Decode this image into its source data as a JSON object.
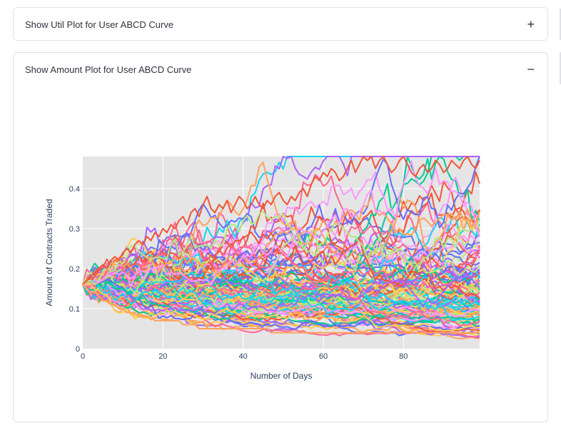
{
  "expanders": [
    {
      "title": "Show Util Plot for User ABCD Curve",
      "toggle": "+",
      "expanded": false
    },
    {
      "title": "Show Amount Plot for User ABCD Curve",
      "toggle": "−",
      "expanded": true
    }
  ],
  "colors": {
    "plot_background": "#e5e5e5",
    "grid": "#ffffff",
    "border": "#e0e2e6",
    "text": "#31333f",
    "series_palette": [
      "#636efa",
      "#EF553B",
      "#00cc96",
      "#ab63fa",
      "#FFA15A",
      "#19d3f3",
      "#FF6692",
      "#B6E880",
      "#FF97FF",
      "#FECB52"
    ]
  },
  "chart_data": {
    "type": "line",
    "title": "",
    "xlabel": "Number of Days",
    "ylabel": "Amount of Contracts Traded",
    "xlim": [
      0,
      99
    ],
    "ylim": [
      0,
      0.48
    ],
    "xticks": [
      0,
      20,
      40,
      60,
      80
    ],
    "yticks": [
      0,
      0.1,
      0.2,
      0.3,
      0.4
    ],
    "grid": true,
    "legend": "none",
    "start_value": 0.16,
    "num_series": 120,
    "series_note": "simulated random-walk paths, all starting near 0.16 at day 0",
    "series": [
      {
        "name": "",
        "values": [
          0.16,
          0.17,
          0.18,
          0.19,
          0.2,
          0.21,
          0.2,
          0.22,
          0.23,
          0.22,
          0.24,
          0.25,
          0.24,
          0.26,
          0.27,
          0.26,
          0.28,
          0.27,
          0.29,
          0.28,
          0.3,
          0.29,
          0.31,
          0.3,
          0.32,
          0.33,
          0.31,
          0.34,
          0.35,
          0.33,
          0.36,
          0.38,
          0.35,
          0.34,
          0.36,
          0.35,
          0.37,
          0.34,
          0.36,
          0.38,
          0.37,
          0.35,
          0.36,
          0.38,
          0.36,
          0.35,
          0.37,
          0.36,
          0.38,
          0.39,
          0.37,
          0.36,
          0.38,
          0.37,
          0.39,
          0.4,
          0.38,
          0.41,
          0.43,
          0.42,
          0.44,
          0.43,
          0.45,
          0.44,
          0.42,
          0.43,
          0.45,
          0.47,
          0.44,
          0.46,
          0.48,
          0.47,
          0.48,
          0.45,
          0.47,
          0.48,
          0.46,
          0.44,
          0.45,
          0.47,
          0.48,
          0.46,
          0.44,
          0.43,
          0.45,
          0.46,
          0.44,
          0.45,
          0.47,
          0.46,
          0.44,
          0.45,
          0.47,
          0.46,
          0.45,
          0.47,
          0.48,
          0.46,
          0.45,
          0.47
        ]
      },
      {
        "name": "",
        "values": [
          0.16,
          0.15,
          0.14,
          0.14,
          0.13,
          0.12,
          0.12,
          0.11,
          0.11,
          0.1,
          0.1,
          0.09,
          0.09,
          0.09,
          0.08,
          0.08,
          0.08,
          0.08,
          0.07,
          0.07,
          0.07,
          0.07,
          0.07,
          0.07,
          0.07,
          0.06,
          0.06,
          0.06,
          0.06,
          0.05,
          0.05,
          0.05,
          0.05,
          0.05,
          0.05,
          0.05,
          0.05,
          0.05,
          0.05,
          0.05,
          0.05,
          0.05,
          0.05,
          0.05,
          0.05,
          0.05,
          0.05,
          0.04,
          0.04,
          0.04,
          0.04,
          0.04,
          0.04,
          0.04,
          0.04,
          0.04,
          0.04,
          0.04,
          0.04,
          0.04,
          0.04,
          0.04,
          0.04,
          0.04,
          0.04,
          0.04,
          0.04,
          0.04,
          0.04,
          0.04,
          0.04,
          0.04,
          0.04,
          0.04,
          0.04,
          0.04,
          0.04,
          0.04,
          0.04,
          0.04,
          0.04,
          0.04,
          0.04,
          0.04,
          0.04,
          0.04,
          0.04,
          0.04,
          0.04,
          0.04,
          0.04,
          0.04,
          0.04,
          0.04,
          0.04,
          0.04,
          0.04,
          0.04,
          0.04,
          0.04
        ]
      }
    ]
  }
}
